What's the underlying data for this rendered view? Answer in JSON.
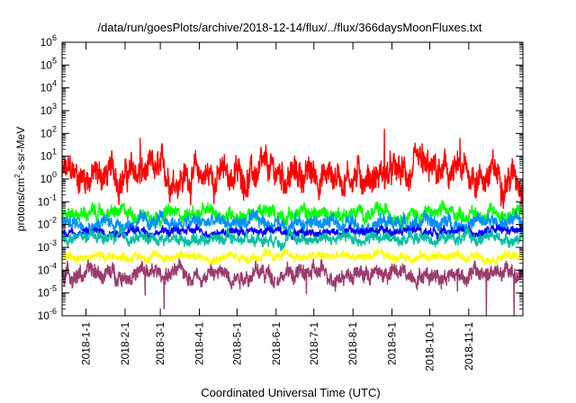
{
  "chart_data": {
    "type": "line",
    "title": "/data/run/goesPlots/archive/2018-12-14/flux/../flux/366daysMoonFluxes.txt",
    "xlabel": "Coordinated Universal Time (UTC)",
    "ylabel_parts": [
      "protons/cm",
      "2",
      "-s-sr-MeV"
    ],
    "x_range": [
      "2017-12-13",
      "2018-12-14"
    ],
    "x_ticks": [
      "2018-1-1",
      "2018-2-1",
      "2018-3-1",
      "2018-4-1",
      "2018-5-1",
      "2018-6-1",
      "2018-7-1",
      "2018-8-1",
      "2018-9-1",
      "2018-10-1",
      "2018-11-1"
    ],
    "y_scale": "log",
    "ylim": [
      1e-06,
      1000000.0
    ],
    "y_tick_exponents": [
      "-6",
      "-5",
      "-4",
      "-3",
      "-2",
      "-1",
      "0",
      "1",
      "2",
      "3",
      "4",
      "5",
      "6"
    ],
    "y_tick_base": "10",
    "grid": false,
    "series": [
      {
        "color": "#ff0000",
        "median": 1.5,
        "spread_decades": 0.55,
        "spikes": [
          {
            "date": "2018-2-13",
            "value": 60
          },
          {
            "date": "2018-8-26",
            "value": 150
          },
          {
            "date": "2018-10-25",
            "value": 60
          },
          {
            "date": "2018-9-25",
            "value": 35
          }
        ]
      },
      {
        "color": "#00ff00",
        "median": 0.03,
        "spread_decades": 0.25,
        "spikes": []
      },
      {
        "color": "#0090ff",
        "median": 0.012,
        "spread_decades": 0.25,
        "spikes": []
      },
      {
        "color": "#0000ff",
        "median": 0.005,
        "spread_decades": 0.15,
        "spikes": []
      },
      {
        "color": "#00c0a0",
        "median": 0.0025,
        "spread_decades": 0.2,
        "spikes": []
      },
      {
        "color": "#ffff00",
        "median": 0.0004,
        "spread_decades": 0.15,
        "spikes": []
      },
      {
        "color": "#9b3c6e",
        "median": 7e-05,
        "spread_decades": 0.3,
        "spikes": [
          {
            "date": "2018-2-17",
            "value": 8e-06
          },
          {
            "date": "2018-3-4",
            "value": 2e-06
          },
          {
            "date": "2018-6-25",
            "value": 9e-06
          },
          {
            "date": "2018-7-18",
            "value": 1.2e-05
          },
          {
            "date": "2018-10-23",
            "value": 1.2e-05
          },
          {
            "date": "2018-11-15",
            "value": 1e-06
          },
          {
            "date": "2018-12-7",
            "value": 1e-06
          }
        ]
      }
    ],
    "data_gap_date": "2018-6-1"
  }
}
